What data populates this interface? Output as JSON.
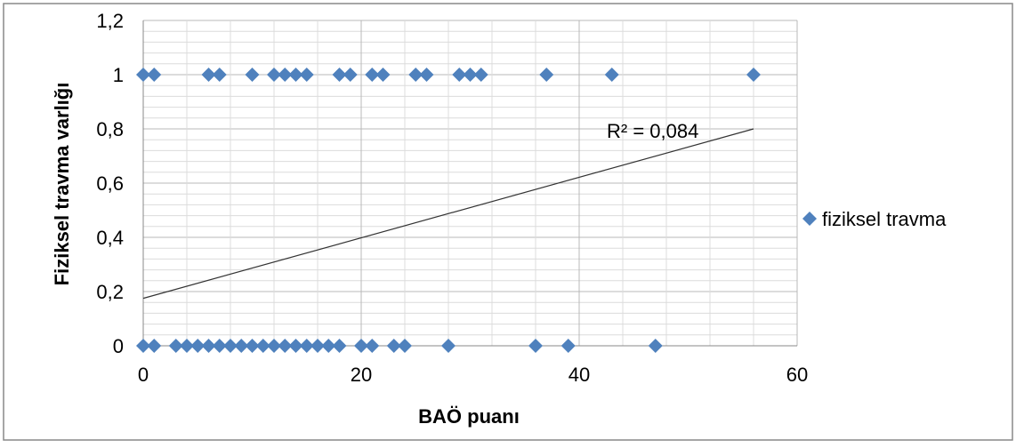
{
  "chart_data": {
    "type": "scatter",
    "title": "",
    "xlabel": "BAÖ puanı",
    "ylabel": "Fiziksel travma varlığı",
    "xlim": [
      0,
      60
    ],
    "ylim": [
      0,
      1.2
    ],
    "x_ticks": [
      "0",
      "20",
      "40",
      "60"
    ],
    "y_ticks": [
      "0",
      "0,2",
      "0,4",
      "0,6",
      "0,8",
      "1",
      "1,2"
    ],
    "grid": true,
    "legend_position": "right",
    "marker_color": "#4F81BD",
    "series": [
      {
        "name": "fiziksel travma",
        "points": [
          [
            0,
            1
          ],
          [
            1,
            1
          ],
          [
            6,
            1
          ],
          [
            7,
            1
          ],
          [
            10,
            1
          ],
          [
            12,
            1
          ],
          [
            13,
            1
          ],
          [
            14,
            1
          ],
          [
            15,
            1
          ],
          [
            18,
            1
          ],
          [
            19,
            1
          ],
          [
            21,
            1
          ],
          [
            22,
            1
          ],
          [
            25,
            1
          ],
          [
            26,
            1
          ],
          [
            29,
            1
          ],
          [
            30,
            1
          ],
          [
            31,
            1
          ],
          [
            37,
            1
          ],
          [
            43,
            1
          ],
          [
            56,
            1
          ],
          [
            0,
            0
          ],
          [
            1,
            0
          ],
          [
            3,
            0
          ],
          [
            4,
            0
          ],
          [
            5,
            0
          ],
          [
            6,
            0
          ],
          [
            7,
            0
          ],
          [
            8,
            0
          ],
          [
            9,
            0
          ],
          [
            10,
            0
          ],
          [
            11,
            0
          ],
          [
            12,
            0
          ],
          [
            13,
            0
          ],
          [
            14,
            0
          ],
          [
            15,
            0
          ],
          [
            16,
            0
          ],
          [
            17,
            0
          ],
          [
            18,
            0
          ],
          [
            20,
            0
          ],
          [
            21,
            0
          ],
          [
            23,
            0
          ],
          [
            24,
            0
          ],
          [
            28,
            0
          ],
          [
            36,
            0
          ],
          [
            39,
            0
          ],
          [
            47,
            0
          ]
        ]
      }
    ],
    "trendline": {
      "type": "linear",
      "from": [
        0,
        0.175
      ],
      "to": [
        56,
        0.8
      ],
      "label": "R² = 0,084"
    }
  }
}
